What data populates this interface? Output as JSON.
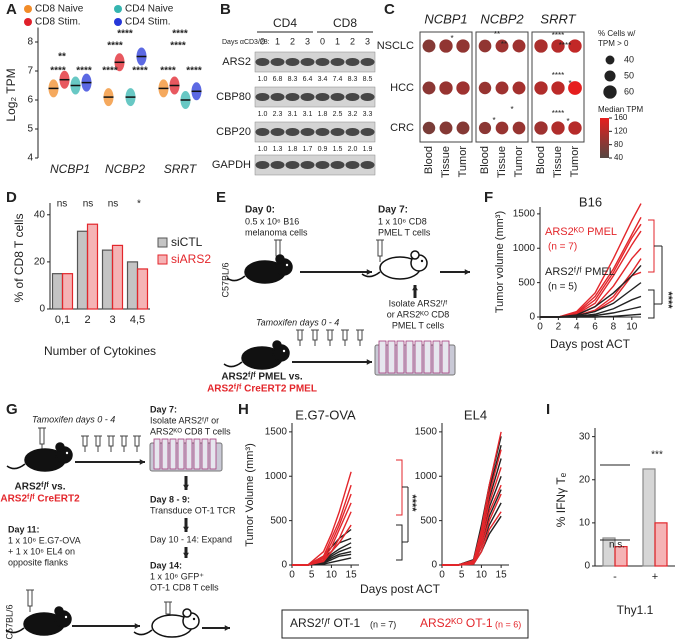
{
  "panel_labels": [
    "A",
    "B",
    "C",
    "D",
    "E",
    "F",
    "G",
    "H",
    "I"
  ],
  "chart_data": [
    {
      "type": "strip",
      "ylabel": "Log₂ TPM",
      "categories": [
        "NCBP1",
        "NCBP2",
        "SRRT"
      ],
      "ylim": [
        4,
        8.5
      ],
      "yticks": [
        4,
        5,
        6,
        7,
        8
      ],
      "series": [
        {
          "name": "CD8 Naive",
          "color": "#f28c28",
          "values": [
            6.4,
            6.1,
            6.4
          ]
        },
        {
          "name": "CD8 Stim.",
          "color": "#e0202a",
          "values": [
            6.7,
            7.3,
            6.5
          ]
        },
        {
          "name": "CD4 Naive",
          "color": "#35b5b0",
          "values": [
            6.5,
            6.1,
            6.0
          ]
        },
        {
          "name": "CD4 Stim.",
          "color": "#2637d9",
          "values": [
            6.6,
            7.5,
            6.3
          ]
        }
      ],
      "annotations": [
        "**",
        "****",
        "****",
        "****",
        "****",
        "****",
        "****",
        "****",
        "****",
        "****",
        "****"
      ]
    },
    {
      "type": "bar",
      "ylabel": "% of CD8 T cells",
      "xlabel": "Number of Cytokines",
      "categories": [
        "0,1",
        "2",
        "3",
        "4,5"
      ],
      "ylim": [
        0,
        45
      ],
      "yticks": [
        0,
        20,
        40
      ],
      "series": [
        {
          "name": "siCTL",
          "color": "#555555",
          "values": [
            15,
            33,
            25,
            20
          ]
        },
        {
          "name": "siARS2",
          "color": "#e3262b",
          "values": [
            15,
            36,
            27,
            17
          ]
        }
      ],
      "annotations": [
        "ns",
        "ns",
        "ns",
        "*"
      ]
    },
    {
      "type": "line",
      "title": "B16",
      "ylabel": "Tumor volume (mm³)",
      "xlabel": "Days post ACT",
      "x": [
        0,
        2,
        4,
        6,
        8,
        10,
        11
      ],
      "xlim": [
        0,
        11
      ],
      "xticks": [
        0,
        2,
        4,
        6,
        8,
        10
      ],
      "ylim": [
        0,
        1600
      ],
      "yticks": [
        0,
        500,
        1000,
        1500
      ],
      "groups": [
        {
          "name": "ARS2ᴷᴼ PMEL",
          "n": "(n = 7)",
          "color": "#e3262b",
          "lines": [
            [
              0,
              0,
              80,
              350,
              850,
              1400,
              1650
            ],
            [
              0,
              0,
              60,
              300,
              700,
              1200,
              1450
            ],
            [
              0,
              0,
              50,
              250,
              650,
              1150,
              1350
            ],
            [
              0,
              0,
              40,
              200,
              600,
              1050,
              1250
            ],
            [
              0,
              0,
              30,
              150,
              450,
              850,
              1000
            ],
            [
              0,
              0,
              20,
              100,
              300,
              650,
              850
            ],
            [
              0,
              0,
              20,
              80,
              250,
              600,
              650
            ]
          ]
        },
        {
          "name": "ARS2ᶠ/ᶠ PMEL",
          "n": "(n = 5)",
          "color": "#222222",
          "lines": [
            [
              0,
              0,
              30,
              150,
              350,
              600,
              750
            ],
            [
              0,
              0,
              20,
              80,
              200,
              400,
              500
            ],
            [
              0,
              0,
              10,
              40,
              120,
              250,
              300
            ],
            [
              0,
              0,
              0,
              20,
              60,
              120,
              150
            ],
            [
              0,
              0,
              0,
              0,
              10,
              30,
              40
            ]
          ]
        }
      ],
      "annotations": [
        "****"
      ]
    },
    {
      "type": "line",
      "title": "E.G7-OVA",
      "ylabel": "Tumor Volume (mm³)",
      "xlabel": "Days post ACT",
      "x": [
        0,
        4,
        8,
        10,
        12,
        15
      ],
      "xlim": [
        0,
        17
      ],
      "xticks": [
        0,
        5,
        10,
        15
      ],
      "ylim": [
        0,
        1600
      ],
      "yticks": [
        0,
        500,
        1000,
        1500
      ],
      "groups": [
        {
          "name": "ARS2ᶠ/ᶠ OT-1",
          "n": "(n = 7)",
          "color": "#222222",
          "lines": [
            [
              0,
              0,
              100,
              200,
              300,
              400
            ],
            [
              0,
              0,
              80,
              150,
              250,
              300
            ],
            [
              0,
              0,
              50,
              120,
              180,
              250
            ],
            [
              0,
              0,
              40,
              100,
              150,
              200
            ],
            [
              0,
              0,
              30,
              80,
              120,
              150
            ],
            [
              0,
              0,
              20,
              60,
              100,
              120
            ],
            [
              0,
              0,
              10,
              30,
              50,
              80
            ]
          ]
        },
        {
          "name": "ARS2ᴷᴼ OT-1",
          "n": "(n = 6)",
          "color": "#e3262b",
          "lines": [
            [
              0,
              0,
              150,
              350,
              600,
              1050
            ],
            [
              0,
              0,
              100,
              300,
              500,
              900
            ],
            [
              0,
              0,
              80,
              250,
              450,
              800
            ],
            [
              0,
              0,
              60,
              200,
              400,
              700
            ],
            [
              0,
              0,
              40,
              150,
              300,
              600
            ],
            [
              0,
              0,
              50,
              150,
              250,
              450
            ]
          ]
        }
      ],
      "annotations": [
        "****"
      ]
    },
    {
      "type": "line",
      "title": "EL4",
      "x": [
        0,
        4,
        8,
        10,
        12,
        15
      ],
      "xlim": [
        0,
        17
      ],
      "xticks": [
        0,
        5,
        10,
        15
      ],
      "ylim": [
        0,
        1600
      ],
      "yticks": [
        0,
        500,
        1000,
        1500
      ],
      "groups": [
        {
          "color": "#222222",
          "lines": [
            [
              0,
              0,
              60,
              450,
              900,
              1450
            ],
            [
              0,
              0,
              50,
              400,
              850,
              1350
            ],
            [
              0,
              0,
              40,
              350,
              750,
              1200
            ],
            [
              0,
              0,
              30,
              300,
              650,
              1000
            ],
            [
              0,
              0,
              30,
              250,
              550,
              850
            ],
            [
              0,
              0,
              20,
              200,
              450,
              700
            ],
            [
              0,
              0,
              10,
              150,
              350,
              550
            ]
          ]
        },
        {
          "color": "#e3262b",
          "lines": [
            [
              0,
              0,
              50,
              400,
              900,
              1500
            ],
            [
              0,
              0,
              40,
              350,
              800,
              1300
            ],
            [
              0,
              0,
              30,
              300,
              700,
              1100
            ],
            [
              0,
              0,
              30,
              250,
              600,
              900
            ],
            [
              0,
              0,
              20,
              200,
              500,
              800
            ],
            [
              0,
              0,
              10,
              150,
              400,
              600
            ]
          ]
        }
      ]
    },
    {
      "type": "bar",
      "ylabel": "% IFNγ Tₑ",
      "xlabel": "Thy1.1",
      "categories": [
        "-",
        "+"
      ],
      "ylim": [
        0,
        32
      ],
      "yticks": [
        0,
        10,
        20,
        30
      ],
      "series": [
        {
          "color": "#8a8a8a",
          "values": [
            6.5,
            22.5
          ]
        },
        {
          "color": "#e3262b",
          "values": [
            4.5,
            10
          ]
        }
      ],
      "annotations": [
        "n.s.",
        "***"
      ]
    }
  ],
  "blot": {
    "groups": [
      "CD4",
      "CD8"
    ],
    "days_label": "Days αCD3/28:",
    "days": [
      0,
      1,
      2,
      3,
      0,
      1,
      2,
      3
    ],
    "rows": [
      {
        "name": "ARS2",
        "quant": [
          "1.0",
          "6.8",
          "8.3",
          "6.4",
          "3.4",
          "7.4",
          "8.3",
          "8.5"
        ]
      },
      {
        "name": "CBP80",
        "quant": [
          "1.0",
          "2.3",
          "3.1",
          "3.1",
          "1.8",
          "2.5",
          "3.2",
          "3.3"
        ]
      },
      {
        "name": "CBP20",
        "quant": [
          "1.0",
          "1.3",
          "1.8",
          "1.7",
          "0.9",
          "1.5",
          "2.0",
          "1.9"
        ]
      },
      {
        "name": "GAPDH"
      }
    ]
  },
  "dotplot": {
    "genes": [
      "NCBP1",
      "NCBP2",
      "SRRT"
    ],
    "rows": [
      "NSCLC",
      "HCC",
      "CRC"
    ],
    "columns": [
      "Blood",
      "Tissue",
      "Tumor"
    ],
    "pct_cells": [
      [
        [
          58,
          60,
          60
        ],
        [
          58,
          60,
          60
        ],
        [
          56,
          58,
          58
        ]
      ],
      [
        [
          57,
          58,
          58
        ],
        [
          56,
          58,
          58
        ],
        [
          55,
          57,
          57
        ]
      ],
      [
        [
          60,
          60,
          60
        ],
        [
          60,
          60,
          62
        ],
        [
          60,
          60,
          60
        ]
      ]
    ],
    "median_tpm": [
      [
        [
          80,
          90,
          90
        ],
        [
          85,
          95,
          100
        ],
        [
          70,
          80,
          80
        ]
      ],
      [
        [
          90,
          100,
          100
        ],
        [
          95,
          100,
          105
        ],
        [
          85,
          95,
          95
        ]
      ],
      [
        [
          110,
          120,
          130
        ],
        [
          115,
          125,
          160
        ],
        [
          100,
          115,
          120
        ]
      ]
    ],
    "size_legend": {
      "title": [
        "% Cells w/",
        "TPM > 0"
      ],
      "values": [
        40,
        50,
        60
      ]
    },
    "color_legend": {
      "title": "Median TPM",
      "ticks": [
        160,
        120,
        80,
        40
      ]
    },
    "annotations": [
      "*",
      "**",
      "**",
      "*",
      "*",
      "****",
      "****",
      "****",
      "*",
      "****",
      "*"
    ]
  },
  "schematic_e": {
    "day0_title": "Day 0:",
    "day0_text": [
      "0.5 x 10⁶ B16",
      "melanoma cells"
    ],
    "strain": "C57BL/6",
    "day7_title": "Day 7:",
    "day7_text": [
      "1 x 10⁶ CD8",
      "PMEL T cells"
    ],
    "tamoxifen": "Tamoxifen days 0 - 4",
    "isolate": [
      "Isolate ARS2ᶠ/ᶠ",
      "or ARS2ᴷᴼ CD8",
      "PMEL T cells"
    ],
    "mouse_label": [
      "ARS2ᶠ/ᶠ PMEL vs.",
      "ARS2ᶠ/ᶠ CreERT2 PMEL"
    ]
  },
  "schematic_g": {
    "tamoxifen": "Tamoxifen days 0 - 4",
    "mouse_label": [
      "ARS2ᶠ/ᶠ vs.",
      "ARS2ᶠ/ᶠ CreERT2"
    ],
    "day7": [
      "Day 7:",
      "Isolate ARS2ᶠ/ᶠ or",
      "ARS2ᴷᴼ CD8 T cells"
    ],
    "day8": [
      "Day 8 - 9:",
      "Transduce OT-1 TCR"
    ],
    "day10": "Day 10 - 14: Expand",
    "day14": [
      "Day 14:",
      "1 x 10⁶ GFP⁺",
      "OT-1 CD8 T cells"
    ],
    "day11": [
      "Day 11:",
      "1 x 10⁶ E.G7-OVA",
      "+ 1 x 10⁶ EL4 on",
      "opposite flanks"
    ],
    "strain": "C57BL/6"
  }
}
